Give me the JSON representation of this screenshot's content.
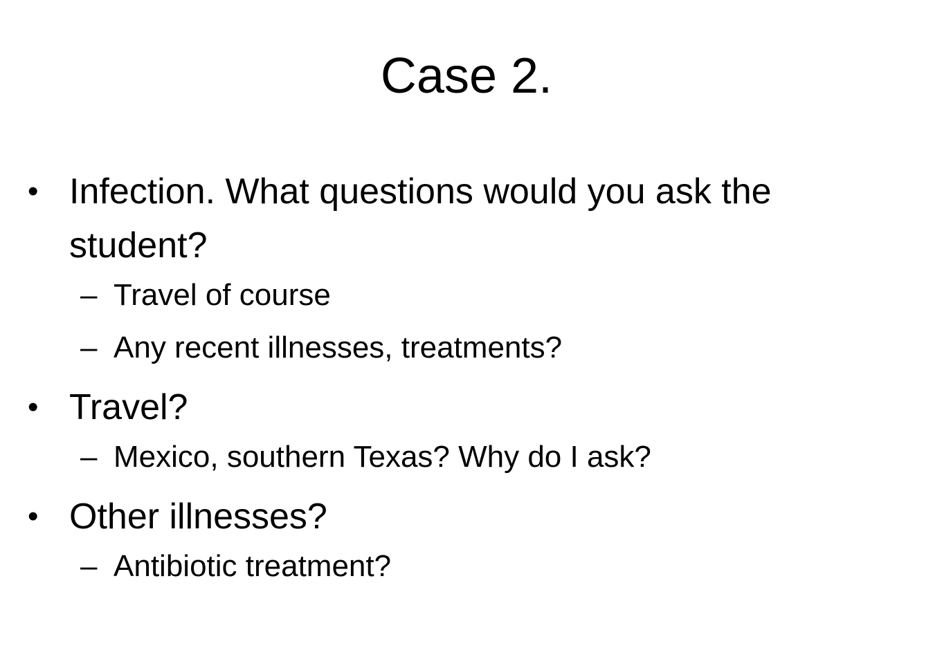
{
  "slide": {
    "title": "Case 2.",
    "bullet_glyph": "•",
    "dash_glyph": "–",
    "items": [
      {
        "text": "Infection. What questions would you ask the student?",
        "subitems": [
          "Travel of course",
          "Any recent illnesses, treatments?"
        ]
      },
      {
        "text": "Travel?",
        "subitems": [
          "Mexico, southern Texas? Why do I ask?"
        ]
      },
      {
        "text": "Other illnesses?",
        "subitems": [
          "Antibiotic treatment?"
        ]
      }
    ]
  }
}
